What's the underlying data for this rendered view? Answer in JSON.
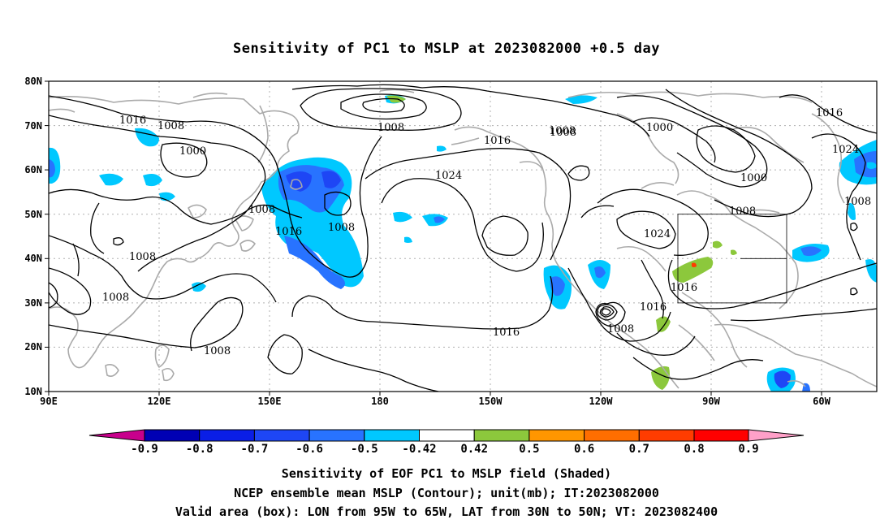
{
  "title": "Sensitivity of PC1 to MSLP at 2023082000 +0.5 day",
  "map": {
    "lat_ticks": [
      "80N",
      "70N",
      "60N",
      "50N",
      "40N",
      "30N",
      "20N",
      "10N"
    ],
    "lon_ticks": [
      "90E",
      "120E",
      "150E",
      "180",
      "150W",
      "120W",
      "90W",
      "60W"
    ],
    "contour_labels": [
      "1016",
      "1008",
      "1000",
      "1008",
      "1008",
      "1016",
      "1024",
      "1008",
      "1016",
      "1000",
      "1008",
      "1000",
      "1024",
      "1016",
      "1008",
      "1008",
      "1008",
      "1008",
      "1024",
      "1016",
      "1008",
      "1016",
      "1016",
      "1008",
      "1008"
    ],
    "colors": {
      "land": "#aaaaaa",
      "contour": "#000000",
      "grid": "#b0b0b0"
    }
  },
  "colorbar": {
    "labels": [
      "-0.9",
      "-0.8",
      "-0.7",
      "-0.6",
      "-0.5",
      "-0.42",
      "0.42",
      "0.5",
      "0.6",
      "0.7",
      "0.8",
      "0.9"
    ],
    "colors": [
      "#c8008c",
      "#0000b4",
      "#0a1ee6",
      "#1e46f5",
      "#2873ff",
      "#28a5ff",
      "#00c8ff",
      "#ffffff",
      "#8cc83c",
      "#ff9600",
      "#ff6e00",
      "#ff3c00",
      "#ff0000",
      "#ffa0c8"
    ]
  },
  "captions": {
    "line1": "Sensitivity of EOF PC1 to MSLP field (Shaded)",
    "line2": "NCEP ensemble mean MSLP (Contour); unit(mb); IT:2023082000",
    "line3": "Valid area (box): LON from 95W to 65W, LAT from 30N to 50N; VT: 2023082400"
  }
}
